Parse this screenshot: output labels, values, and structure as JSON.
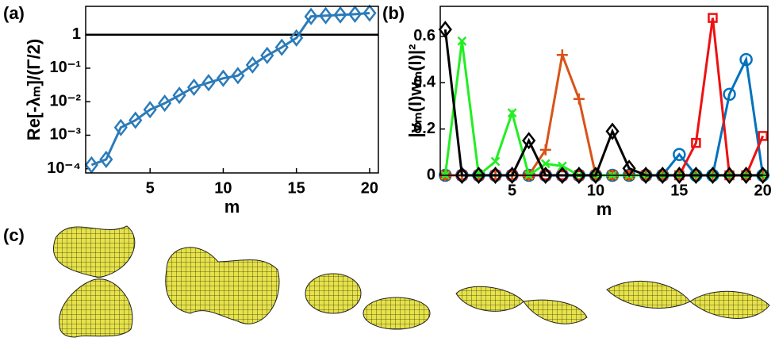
{
  "panel_labels": [
    "(a)",
    "(b)",
    "(c)"
  ],
  "chart_data": [
    {
      "type": "line",
      "log_y": true,
      "xlabel": "m",
      "ylabel": "Re[-λₘ]/(Γ/2)",
      "x": [
        1,
        2,
        3,
        4,
        5,
        6,
        7,
        8,
        9,
        10,
        11,
        12,
        13,
        14,
        15,
        16,
        17,
        18,
        19,
        20
      ],
      "xlim": [
        0.6,
        20.6
      ],
      "xticks": [
        5,
        10,
        15,
        20
      ],
      "ylim": [
        7.5e-05,
        7
      ],
      "yticks": [
        {
          "value": 0.0001,
          "label": "10⁻⁴"
        },
        {
          "value": 0.001,
          "label": "10⁻³"
        },
        {
          "value": 0.01,
          "label": "10⁻²"
        },
        {
          "value": 0.1,
          "label": "10⁻¹"
        },
        1
      ],
      "hline": 1,
      "hline_color": "#000000",
      "series": [
        {
          "color": "#2b7bb9",
          "marker": "diamond",
          "values": [
            0.00013,
            0.00019,
            0.0017,
            0.0028,
            0.0058,
            0.009,
            0.0155,
            0.027,
            0.037,
            0.05,
            0.06,
            0.125,
            0.24,
            0.42,
            0.8,
            3.5,
            3.7,
            3.9,
            4.1,
            4.4
          ]
        }
      ]
    },
    {
      "type": "line",
      "log_y": false,
      "xlabel": "m",
      "ylabel": "|vₘ(l)wₘ(l)|²",
      "x": [
        1,
        2,
        3,
        4,
        5,
        6,
        7,
        8,
        9,
        10,
        11,
        12,
        13,
        14,
        15,
        16,
        17,
        18,
        19,
        20
      ],
      "xlim": [
        0.7,
        20.3
      ],
      "xticks": [
        5,
        10,
        15,
        20
      ],
      "ylim": [
        0,
        0.73
      ],
      "yticks": [
        0,
        0.2,
        0.4,
        0.6
      ],
      "series": [
        {
          "color": "#0072bd",
          "marker": "circle",
          "values": [
            0,
            0,
            0,
            0,
            0,
            0,
            0,
            0,
            0,
            0,
            0,
            0,
            0,
            0,
            0.09,
            0,
            0,
            0.35,
            0.5,
            0
          ]
        },
        {
          "color": "#ee1111",
          "marker": "square",
          "values": [
            0,
            0,
            0,
            0,
            0,
            0,
            0,
            0,
            0,
            0,
            0,
            0,
            0,
            0,
            0,
            0.14,
            0.68,
            0,
            0,
            0.17
          ]
        },
        {
          "color": "#d95319",
          "marker": "plus",
          "values": [
            0,
            0,
            0,
            0,
            0,
            0,
            0.11,
            0.52,
            0.33,
            0,
            0,
            0,
            0,
            0,
            0,
            0,
            0,
            0,
            0,
            0
          ]
        },
        {
          "color": "#22ee22",
          "marker": "cross",
          "values": [
            0,
            0.58,
            0,
            0.06,
            0.27,
            0,
            0.05,
            0.04,
            0,
            0,
            0,
            0,
            0,
            0,
            0,
            0,
            0,
            0,
            0,
            0
          ]
        },
        {
          "color": "#000000",
          "marker": "diamond",
          "values": [
            0.63,
            0,
            0,
            0,
            0,
            0.15,
            0,
            0,
            0,
            0,
            0.19,
            0.03,
            0,
            0,
            0,
            0,
            0,
            0,
            0,
            0
          ]
        }
      ]
    }
  ]
}
